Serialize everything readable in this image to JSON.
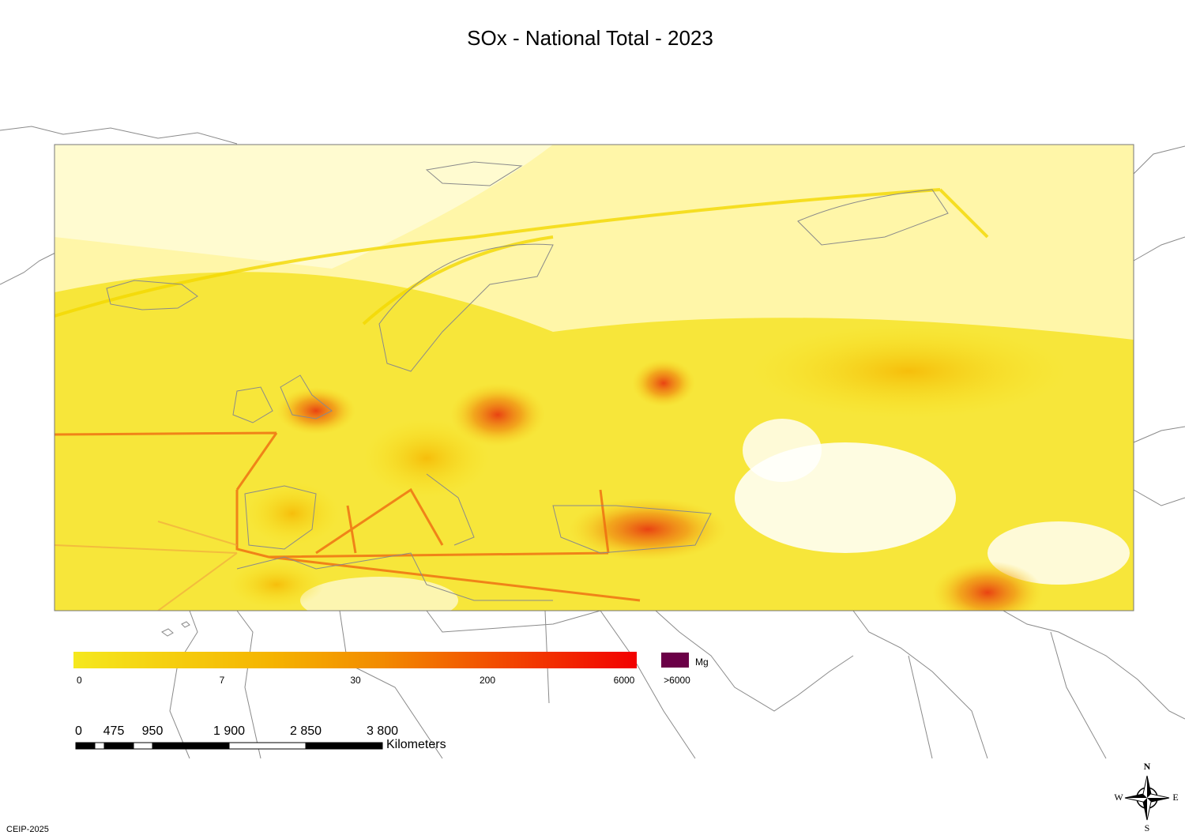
{
  "header": {
    "title": "SOx - National Total - 2023"
  },
  "legend": {
    "labels": [
      "0",
      "7",
      "30",
      "200",
      "6000",
      ">6000"
    ],
    "unit": "Mg"
  },
  "scalebar": {
    "labels": [
      "0",
      "475",
      "950",
      "1 900",
      "2 850",
      "3 800"
    ],
    "unit": "Kilometers"
  },
  "compass": {
    "north": "N",
    "south": "S",
    "east": "E",
    "west": "W"
  },
  "footer": {
    "credit": "CEIP-2025"
  }
}
